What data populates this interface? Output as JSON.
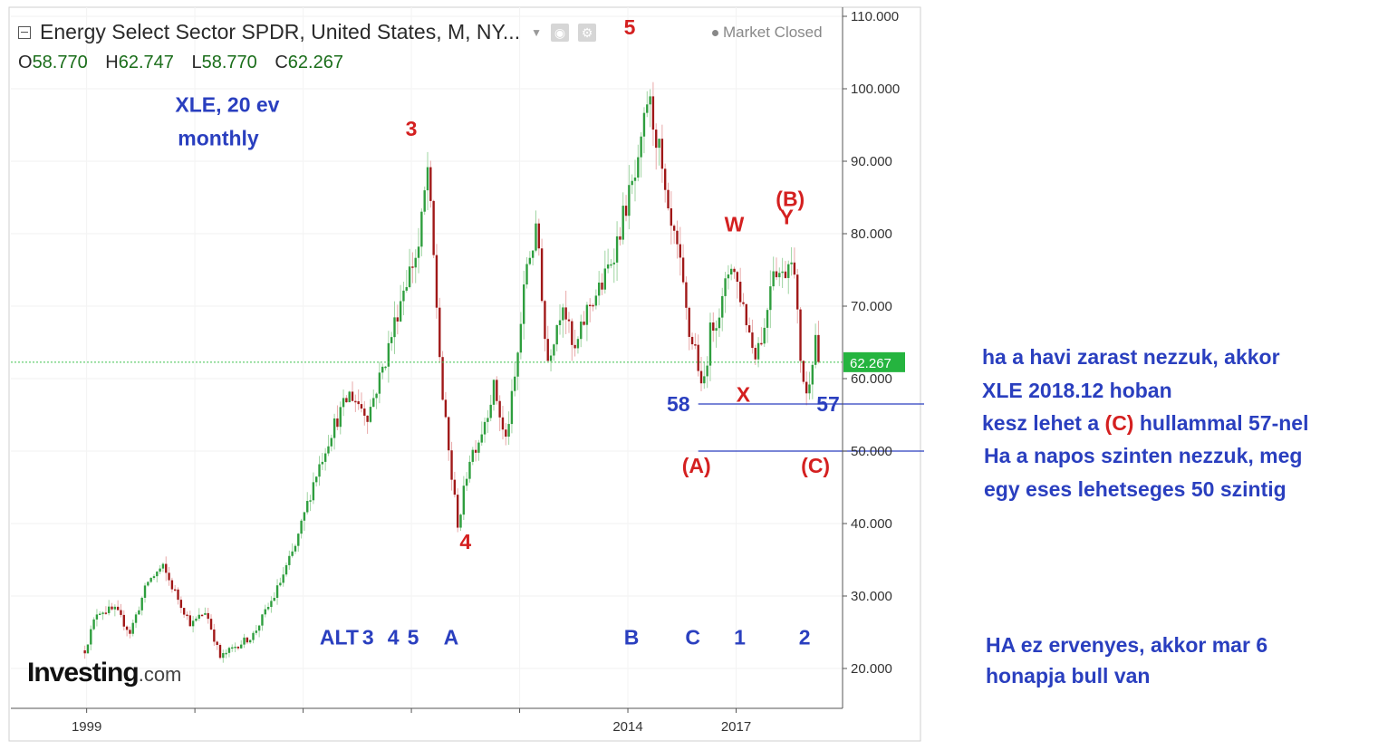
{
  "header": {
    "title": "Energy Select Sector SPDR, United States, M, NY...",
    "market_status": "Market Closed",
    "ohlc": [
      {
        "key": "O",
        "value": "58.770"
      },
      {
        "key": "H",
        "value": "62.747"
      },
      {
        "key": "L",
        "value": "58.770"
      },
      {
        "key": "C",
        "value": "62.267"
      }
    ]
  },
  "logo": {
    "main": "Investing",
    "suffix": ".com"
  },
  "colors": {
    "up": "#2e9e3e",
    "down": "#a01818",
    "wick_up": "#9fd4a2",
    "wick_down": "#e8a8a8",
    "blue_text": "#2a3fbf",
    "red_text": "#d42020",
    "last_price_bg": "#25b43f"
  },
  "chart_data": {
    "type": "candlestick",
    "interval": "monthly",
    "ylim": [
      15,
      112
    ],
    "y_ticks": [
      "110.000",
      "100.000",
      "90.000",
      "80.000",
      "70.000",
      "60.000",
      "50.000",
      "40.000",
      "30.000",
      "20.000"
    ],
    "x_ticks": [
      {
        "year": 1999,
        "label": "1999"
      },
      {
        "year": 2002,
        "label": ""
      },
      {
        "year": 2005,
        "label": ""
      },
      {
        "year": 2008,
        "label": ""
      },
      {
        "year": 2011,
        "label": ""
      },
      {
        "year": 2014,
        "label": "2014"
      },
      {
        "year": 2017,
        "label": "2017"
      }
    ],
    "last_price": {
      "value": 62.267,
      "label": "62.267"
    },
    "price_anchors": [
      [
        1998.95,
        22.5
      ],
      [
        1999.3,
        28
      ],
      [
        1999.8,
        28
      ],
      [
        2000.2,
        25
      ],
      [
        2000.7,
        32
      ],
      [
        2001.1,
        34
      ],
      [
        2001.5,
        30
      ],
      [
        2001.9,
        26
      ],
      [
        2002.3,
        28
      ],
      [
        2002.7,
        21.5
      ],
      [
        2003.1,
        23
      ],
      [
        2003.6,
        24.5
      ],
      [
        2004.2,
        30
      ],
      [
        2004.8,
        37
      ],
      [
        2005.3,
        46
      ],
      [
        2005.8,
        53
      ],
      [
        2006.3,
        58
      ],
      [
        2006.8,
        55
      ],
      [
        2007.3,
        63
      ],
      [
        2007.8,
        73
      ],
      [
        2008.2,
        78
      ],
      [
        2008.45,
        89
      ],
      [
        2008.65,
        74
      ],
      [
        2008.85,
        58
      ],
      [
        2009.1,
        47
      ],
      [
        2009.3,
        39.5
      ],
      [
        2009.6,
        49
      ],
      [
        2009.9,
        52
      ],
      [
        2010.3,
        59
      ],
      [
        2010.6,
        51
      ],
      [
        2010.9,
        61
      ],
      [
        2011.2,
        76
      ],
      [
        2011.5,
        80.5
      ],
      [
        2011.75,
        62
      ],
      [
        2012.2,
        71
      ],
      [
        2012.5,
        63
      ],
      [
        2012.9,
        70
      ],
      [
        2013.3,
        73
      ],
      [
        2013.7,
        79
      ],
      [
        2013.95,
        84
      ],
      [
        2014.3,
        89
      ],
      [
        2014.55,
        99
      ],
      [
        2014.85,
        92
      ],
      [
        2015.1,
        82
      ],
      [
        2015.4,
        77
      ],
      [
        2015.7,
        66
      ],
      [
        2015.9,
        64
      ],
      [
        2016.05,
        57.5
      ],
      [
        2016.3,
        67
      ],
      [
        2016.6,
        70
      ],
      [
        2016.85,
        76.5
      ],
      [
        2017.2,
        70
      ],
      [
        2017.5,
        63.5
      ],
      [
        2017.8,
        67
      ],
      [
        2018.0,
        76
      ],
      [
        2018.3,
        74
      ],
      [
        2018.55,
        78
      ],
      [
        2018.8,
        62
      ],
      [
        2018.95,
        57.5
      ],
      [
        2019.2,
        66
      ],
      [
        2019.35,
        62.3
      ]
    ],
    "hlines": [
      {
        "y": 56.5,
        "x_from": 2015.95
      },
      {
        "y": 50,
        "x_from": 2015.95
      }
    ],
    "annotations": [
      {
        "text": "3",
        "x": 2008.0,
        "y": 93.5,
        "color": "red"
      },
      {
        "text": "4",
        "x": 2009.5,
        "y": 36.5,
        "color": "red"
      },
      {
        "text": "5",
        "x": 2014.05,
        "y": 107.5,
        "color": "red"
      },
      {
        "text": "W",
        "x": 2016.95,
        "y": 80.3,
        "color": "red"
      },
      {
        "text": "(B)",
        "x": 2018.5,
        "y": 83.8,
        "color": "red"
      },
      {
        "text": "Y",
        "x": 2018.4,
        "y": 81.3,
        "color": "red"
      },
      {
        "text": "X",
        "x": 2017.2,
        "y": 56.8,
        "color": "red"
      },
      {
        "text": "(A)",
        "x": 2015.9,
        "y": 47,
        "color": "red"
      },
      {
        "text": "(C)",
        "x": 2019.2,
        "y": 47,
        "color": "red"
      },
      {
        "text": "58",
        "x": 2015.4,
        "y": 55.5,
        "color": "blue"
      },
      {
        "text": "57",
        "x": 2019.55,
        "y": 55.5,
        "color": "blue"
      },
      {
        "text": "ALT",
        "x": 2006.0,
        "y": 23.3,
        "color": "blue"
      },
      {
        "text": "3",
        "x": 2006.8,
        "y": 23.3,
        "color": "blue"
      },
      {
        "text": "4",
        "x": 2007.5,
        "y": 23.3,
        "color": "blue"
      },
      {
        "text": "5",
        "x": 2008.05,
        "y": 23.3,
        "color": "blue"
      },
      {
        "text": "A",
        "x": 2009.1,
        "y": 23.3,
        "color": "blue"
      },
      {
        "text": "B",
        "x": 2014.1,
        "y": 23.3,
        "color": "blue"
      },
      {
        "text": "C",
        "x": 2015.8,
        "y": 23.3,
        "color": "blue"
      },
      {
        "text": "1",
        "x": 2017.1,
        "y": 23.3,
        "color": "blue"
      },
      {
        "text": "2",
        "x": 2018.9,
        "y": 23.3,
        "color": "blue"
      },
      {
        "text": "XLE, 20 ev",
        "x": 2002.9,
        "y": 96.8,
        "color": "blue"
      },
      {
        "text": "monthly",
        "x": 2002.65,
        "y": 92.2,
        "color": "blue"
      }
    ]
  },
  "notes": {
    "line1": "ha a havi zarast nezzuk, akkor",
    "line2": "XLE 2018.12 hoban",
    "line3_a": "kesz lehet a ",
    "line3_b": "(C)",
    "line3_c": " hullammal 57-nel",
    "line4": "Ha a napos szinten nezzuk, meg",
    "line5": "egy eses lehetseges 50 szintig",
    "line6": "HA ez ervenyes, akkor mar 6",
    "line7": "honapja bull van"
  }
}
